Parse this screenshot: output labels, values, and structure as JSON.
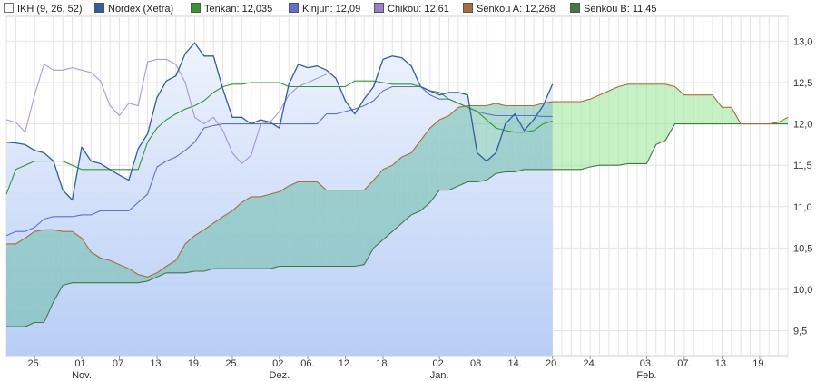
{
  "legend": [
    {
      "label": "IKH (9, 26, 52)",
      "color": "#ffffff"
    },
    {
      "label": "Nordex (Xetra)",
      "color": "#2f5ea8"
    },
    {
      "label": "Tenkan: 12,035",
      "color": "#2e9a2e"
    },
    {
      "label": "Kinjun: 12,09",
      "color": "#5f6fd6"
    },
    {
      "label": "Chikou: 12,61",
      "color": "#9a7fd0"
    },
    {
      "label": "Senkou A: 12,268",
      "color": "#a86d3a"
    },
    {
      "label": "Senkou B: 11,45",
      "color": "#3f7a44"
    }
  ],
  "chart_data": {
    "type": "line",
    "y_range": [
      9.2,
      13.3
    ],
    "y_ticks": [
      "13,0",
      "12,5",
      "12,0",
      "11,5",
      "11,0",
      "10,5",
      "10,0",
      "9,5"
    ],
    "y_tick_values": [
      13.0,
      12.5,
      12.0,
      11.5,
      11.0,
      10.5,
      10.0,
      9.5
    ],
    "x_day_labels": [
      "25.",
      "01.",
      "07.",
      "13.",
      "19.",
      "25.",
      "02.",
      "06.",
      "12.",
      "18.",
      "02.",
      "08.",
      "14.",
      "20.",
      "24.",
      "03.",
      "07.",
      "13.",
      "19."
    ],
    "x_day_indices": [
      3,
      8,
      12,
      16,
      20,
      24,
      29,
      32,
      36,
      40,
      46,
      50,
      54,
      58,
      62,
      68,
      72,
      76,
      80
    ],
    "x_month_labels": [
      "Nov.",
      "Dez.",
      "Jan.",
      "Feb."
    ],
    "x_month_indices": [
      8,
      29,
      46,
      68
    ],
    "n_points": 84,
    "history_end_index": 58,
    "series": [
      {
        "name": "Nordex (Xetra)",
        "color": "#2f5ea8",
        "values": [
          11.78,
          11.77,
          11.75,
          11.68,
          11.65,
          11.55,
          11.2,
          11.08,
          11.72,
          11.55,
          11.52,
          11.45,
          11.38,
          11.32,
          11.7,
          11.88,
          12.32,
          12.52,
          12.58,
          12.85,
          12.98,
          12.82,
          12.82,
          12.42,
          12.08,
          12.08,
          12.0,
          12.05,
          12.02,
          11.95,
          12.48,
          12.72,
          12.68,
          12.7,
          12.65,
          12.55,
          12.28,
          12.12,
          12.3,
          12.45,
          12.78,
          12.82,
          12.8,
          12.7,
          12.45,
          12.4,
          12.35,
          12.38,
          12.38,
          12.35,
          11.65,
          11.55,
          11.65,
          12.0,
          12.12,
          11.92,
          12.05,
          12.22,
          12.48
        ]
      },
      {
        "name": "Tenkan",
        "color": "#2e9a2e",
        "values": [
          11.15,
          11.45,
          11.5,
          11.55,
          11.55,
          11.55,
          11.55,
          11.5,
          11.45,
          11.45,
          11.45,
          11.45,
          11.45,
          11.45,
          11.45,
          11.78,
          11.95,
          12.05,
          12.12,
          12.18,
          12.22,
          12.28,
          12.38,
          12.45,
          12.48,
          12.48,
          12.5,
          12.5,
          12.5,
          12.5,
          12.45,
          12.45,
          12.45,
          12.45,
          12.45,
          12.45,
          12.45,
          12.52,
          12.52,
          12.52,
          12.5,
          12.48,
          12.48,
          12.48,
          12.45,
          12.4,
          12.38,
          12.3,
          12.25,
          12.2,
          12.15,
          12.05,
          11.95,
          11.92,
          11.9,
          11.9,
          11.92,
          12.0,
          12.035
        ]
      },
      {
        "name": "Kinjun",
        "color": "#5f6fd6",
        "values": [
          10.65,
          10.7,
          10.7,
          10.75,
          10.85,
          10.88,
          10.88,
          10.88,
          10.9,
          10.9,
          10.95,
          10.95,
          10.95,
          10.95,
          11.05,
          11.15,
          11.48,
          11.55,
          11.6,
          11.68,
          11.78,
          11.95,
          11.98,
          12.0,
          12.0,
          12.0,
          12.0,
          12.0,
          12.0,
          12.0,
          12.0,
          12.0,
          12.0,
          12.0,
          12.12,
          12.12,
          12.15,
          12.18,
          12.22,
          12.28,
          12.4,
          12.45,
          12.45,
          12.45,
          12.45,
          12.35,
          12.3,
          12.3,
          12.25,
          12.2,
          12.15,
          12.12,
          12.1,
          12.1,
          12.1,
          12.1,
          12.1,
          12.09,
          12.09
        ]
      },
      {
        "name": "Chikou",
        "color": "#9a7fd0",
        "values": [
          12.05,
          12.02,
          11.9,
          12.35,
          12.72,
          12.65,
          12.65,
          12.68,
          12.65,
          12.62,
          12.52,
          12.22,
          12.1,
          12.25,
          12.22,
          12.75,
          12.78,
          12.78,
          12.72,
          12.5,
          12.08,
          12.0,
          12.08,
          11.92,
          11.65,
          11.52,
          11.62,
          12.0,
          12.02,
          12.15,
          12.35,
          12.45,
          12.5,
          12.55,
          12.6
        ]
      },
      {
        "name": "Senkou A",
        "color": "#a86d3a",
        "values": [
          10.55,
          10.55,
          10.62,
          10.7,
          10.72,
          10.72,
          10.7,
          10.7,
          10.62,
          10.45,
          10.38,
          10.35,
          10.3,
          10.25,
          10.18,
          10.15,
          10.2,
          10.28,
          10.35,
          10.55,
          10.65,
          10.72,
          10.8,
          10.88,
          10.95,
          11.05,
          11.12,
          11.12,
          11.15,
          11.18,
          11.25,
          11.3,
          11.3,
          11.3,
          11.2,
          11.2,
          11.2,
          11.2,
          11.2,
          11.32,
          11.45,
          11.5,
          11.6,
          11.65,
          11.8,
          11.95,
          12.05,
          12.1,
          12.2,
          12.22,
          12.22,
          12.22,
          12.25,
          12.22,
          12.22,
          12.22,
          12.22,
          12.25,
          12.268,
          12.27,
          12.27,
          12.27,
          12.3,
          12.35,
          12.4,
          12.45,
          12.48,
          12.48,
          12.48,
          12.48,
          12.48,
          12.45,
          12.35,
          12.35,
          12.35,
          12.35,
          12.2,
          12.2,
          12.0,
          12.0,
          12.0,
          12.0,
          12.02,
          12.08
        ]
      },
      {
        "name": "Senkou B",
        "color": "#3f7a44",
        "values": [
          9.55,
          9.55,
          9.55,
          9.6,
          9.6,
          9.85,
          10.05,
          10.08,
          10.08,
          10.08,
          10.08,
          10.08,
          10.08,
          10.08,
          10.08,
          10.1,
          10.15,
          10.2,
          10.2,
          10.2,
          10.22,
          10.22,
          10.25,
          10.25,
          10.25,
          10.25,
          10.25,
          10.25,
          10.25,
          10.28,
          10.28,
          10.28,
          10.28,
          10.28,
          10.28,
          10.28,
          10.28,
          10.28,
          10.3,
          10.5,
          10.6,
          10.7,
          10.8,
          10.9,
          10.95,
          11.05,
          11.2,
          11.2,
          11.25,
          11.3,
          11.3,
          11.32,
          11.4,
          11.42,
          11.42,
          11.45,
          11.45,
          11.45,
          11.45,
          11.45,
          11.45,
          11.45,
          11.48,
          11.5,
          11.5,
          11.5,
          11.52,
          11.52,
          11.52,
          11.75,
          11.8,
          12.0,
          12.0,
          12.0,
          12.0,
          12.0,
          12.0,
          12.0,
          12.0,
          12.0,
          12.0,
          12.0,
          12.0,
          12.0
        ]
      }
    ]
  }
}
